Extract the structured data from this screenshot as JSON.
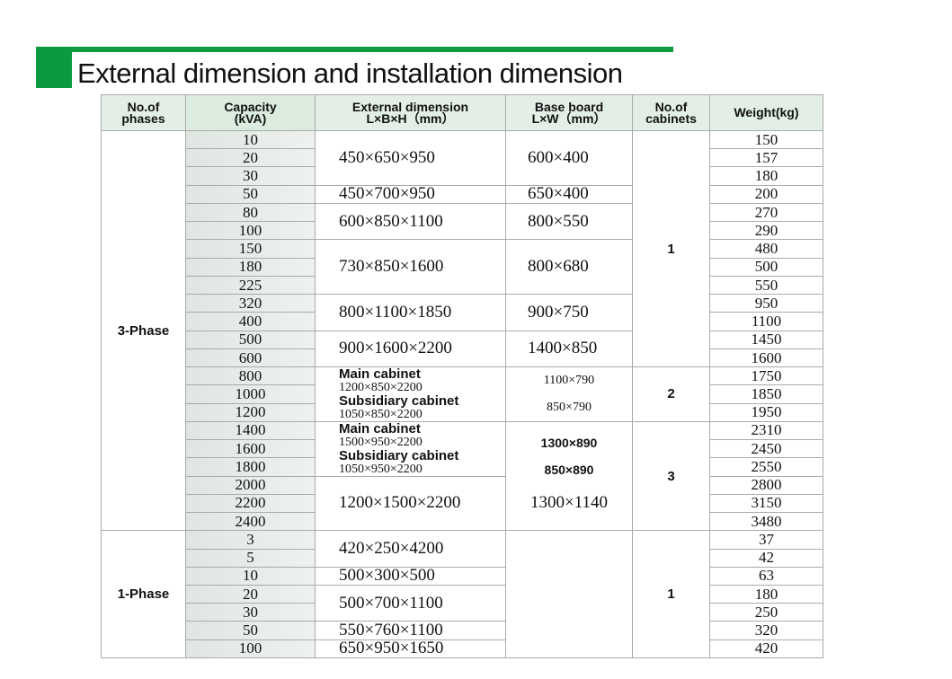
{
  "title": "External dimension and installation dimension",
  "colors": {
    "accent": "#0d9a3e",
    "header_bg": "#e3efe6"
  },
  "headers": {
    "phases": [
      "No.of",
      "phases"
    ],
    "capacity": [
      "Capacity",
      "(kVA)"
    ],
    "external": [
      "External dimension",
      "L×B×H（mm）"
    ],
    "base": [
      "Base board",
      "L×W（mm）"
    ],
    "cabinets": [
      "No.of",
      "cabinets"
    ],
    "weight": [
      "Weight(kg)"
    ]
  },
  "phases": [
    {
      "label": "3-Phase",
      "capacities": [
        "10",
        "20",
        "30",
        "50",
        "80",
        "100",
        "150",
        "180",
        "225",
        "320",
        "400",
        "500",
        "600",
        "800",
        "1000",
        "1200",
        "1400",
        "1600",
        "1800",
        "2000",
        "2200",
        "2400"
      ],
      "weights": [
        "150",
        "157",
        "180",
        "200",
        "270",
        "290",
        "480",
        "500",
        "550",
        "950",
        "1100",
        "1450",
        "1600",
        "1750",
        "1850",
        "1950",
        "2310",
        "2450",
        "2550",
        "2800",
        "3150",
        "3480"
      ],
      "dimension_groups": [
        {
          "count": 3,
          "external": "450×650×950",
          "base": "600×400"
        },
        {
          "count": 1,
          "external": "450×700×950",
          "base": "650×400"
        },
        {
          "count": 2,
          "external": "600×850×1100",
          "base": "800×550"
        },
        {
          "count": 3,
          "external": "730×850×1600",
          "base": "800×680"
        },
        {
          "count": 2,
          "external": "800×1100×1850",
          "base": "900×750"
        },
        {
          "count": 2,
          "external": "900×1600×2200",
          "base": "1400×850"
        },
        {
          "count": 3,
          "main_label": "Main cabinet",
          "main": "1200×850×2200",
          "sub_label": "Subsidiary cabinet",
          "sub": "1050×850×2200",
          "base_main": "1100×790",
          "base_sub": "850×790"
        },
        {
          "count": 3,
          "main_label": "Main cabinet",
          "main": "1500×950×2200",
          "sub_label": "Subsidiary cabinet",
          "sub": "1050×950×2200",
          "base_main": "1300×890",
          "base_sub": "850×890",
          "base_span": 6
        },
        {
          "count": 3,
          "external": "1200×1500×2200",
          "base": "1300×1140",
          "base_merged": true
        }
      ],
      "cabinet_groups": [
        {
          "count": 13,
          "value": "1"
        },
        {
          "count": 3,
          "value": "2"
        },
        {
          "count": 6,
          "value": "3"
        }
      ]
    },
    {
      "label": "1-Phase",
      "capacities": [
        "3",
        "5",
        "10",
        "20",
        "30",
        "50",
        "100"
      ],
      "weights": [
        "37",
        "42",
        "63",
        "180",
        "250",
        "320",
        "420"
      ],
      "dimension_groups": [
        {
          "count": 2,
          "external": "420×250×4200"
        },
        {
          "count": 1,
          "external": "500×300×500"
        },
        {
          "count": 2,
          "external": "500×700×1100"
        },
        {
          "count": 1,
          "external": "550×760×1100"
        },
        {
          "count": 1,
          "external": "650×950×1650"
        }
      ],
      "base_empty": true,
      "cabinet_groups": [
        {
          "count": 7,
          "value": "1"
        }
      ]
    }
  ]
}
